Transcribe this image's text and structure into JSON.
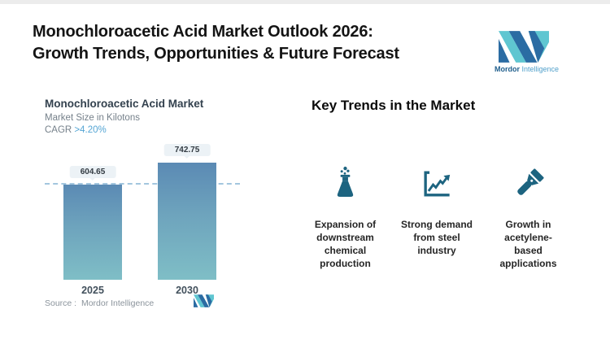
{
  "header": {
    "title_line1": "Monochloroacetic Acid Market Outlook 2026:",
    "title_line2": "Growth Trends, Opportunities & Future Forecast",
    "brand_bold": "Mordor",
    "brand_light": "Intelligence"
  },
  "chart": {
    "title": "Monochloroacetic Acid Market",
    "subtitle": "Market Size in Kilotons",
    "cagr_label": "CAGR ",
    "cagr_value": ">4.20%",
    "source_label": "Source :",
    "source_value": "Mordor Intelligence"
  },
  "chart_data": {
    "type": "bar",
    "categories": [
      "2025",
      "2030"
    ],
    "values": [
      604.65,
      742.75
    ],
    "data_labels": [
      "604.65",
      "742.75"
    ],
    "title": "Monochloroacetic Acid Market",
    "xlabel": "",
    "ylabel": "Market Size in Kilotons",
    "ylim": [
      0,
      780
    ],
    "annotations": [
      "CAGR >4.20%"
    ],
    "grid": false,
    "legend": "none",
    "bar_gradient_top": "#5b8ab4",
    "bar_gradient_bottom": "#7fbec6",
    "reference_line": {
      "value": 604.65,
      "style": "dashed",
      "color": "#a3c6de"
    }
  },
  "trends": {
    "heading": "Key Trends in the Market",
    "items": [
      {
        "icon": "flask-icon",
        "label": "Expansion of downstream chemical production"
      },
      {
        "icon": "growth-chart-icon",
        "label": "Strong demand from steel industry"
      },
      {
        "icon": "flashlight-icon",
        "label": "Growth in acetylene-based applications"
      }
    ]
  },
  "colors": {
    "accent_teal": "#5fc6d1",
    "accent_blue": "#2b6ca3",
    "icon_color": "#1d6480",
    "cagr_value_color": "#54a5d4"
  }
}
